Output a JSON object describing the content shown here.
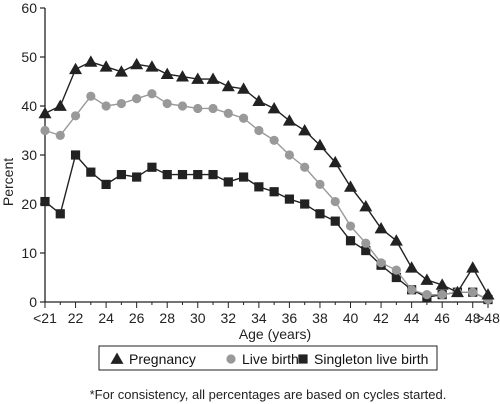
{
  "chart_data": {
    "type": "line",
    "title": "",
    "xlabel": "Age (years)",
    "ylabel": "Percent",
    "ylim": [
      0,
      60
    ],
    "yticks": [
      0,
      10,
      20,
      30,
      40,
      50,
      60
    ],
    "x": [
      "<21",
      "21",
      "22",
      "23",
      "24",
      "25",
      "26",
      "27",
      "28",
      "29",
      "30",
      "31",
      "32",
      "33",
      "34",
      "35",
      "36",
      "37",
      "38",
      "39",
      "40",
      "41",
      "42",
      "43",
      "44",
      "45",
      "46",
      "47",
      "48",
      ">48"
    ],
    "xtick_labels": [
      "<21",
      "22",
      "24",
      "26",
      "28",
      "30",
      "32",
      "34",
      "36",
      "38",
      "40",
      "42",
      "44",
      "46",
      "48",
      ">48"
    ],
    "grid": false,
    "legend_position": "bottom",
    "series": [
      {
        "name": "Pregnancy",
        "marker": "triangle",
        "color": "#222222",
        "values": [
          38.5,
          40.0,
          47.5,
          49.0,
          48.0,
          47.0,
          48.5,
          48.0,
          46.5,
          46.0,
          45.5,
          45.5,
          44.0,
          43.5,
          41.0,
          39.5,
          37.0,
          35.0,
          32.0,
          28.5,
          23.5,
          19.5,
          15.0,
          12.5,
          7.0,
          4.5,
          3.5,
          2.0,
          7.0,
          1.5
        ]
      },
      {
        "name": "Live birth",
        "marker": "circle",
        "color": "#999999",
        "values": [
          35.0,
          34.0,
          38.0,
          42.0,
          40.0,
          40.5,
          41.5,
          42.5,
          40.5,
          40.0,
          39.5,
          39.5,
          38.5,
          37.5,
          35.0,
          33.0,
          30.0,
          27.5,
          24.0,
          20.5,
          15.5,
          12.0,
          8.0,
          6.5,
          2.5,
          1.5,
          1.5,
          2.0,
          2.0,
          0.5
        ]
      },
      {
        "name": "Singleton live birth",
        "marker": "square",
        "color": "#222222",
        "values": [
          20.5,
          18.0,
          30.0,
          26.5,
          24.0,
          26.0,
          25.5,
          27.5,
          26.0,
          26.0,
          26.0,
          26.0,
          24.5,
          25.5,
          23.5,
          22.5,
          21.0,
          20.0,
          18.0,
          16.5,
          12.5,
          10.5,
          7.5,
          5.0,
          2.5,
          1.0,
          1.5,
          2.0,
          2.0,
          0.5
        ]
      }
    ],
    "footnote": "*For consistency, all percentages are based on cycles started."
  }
}
